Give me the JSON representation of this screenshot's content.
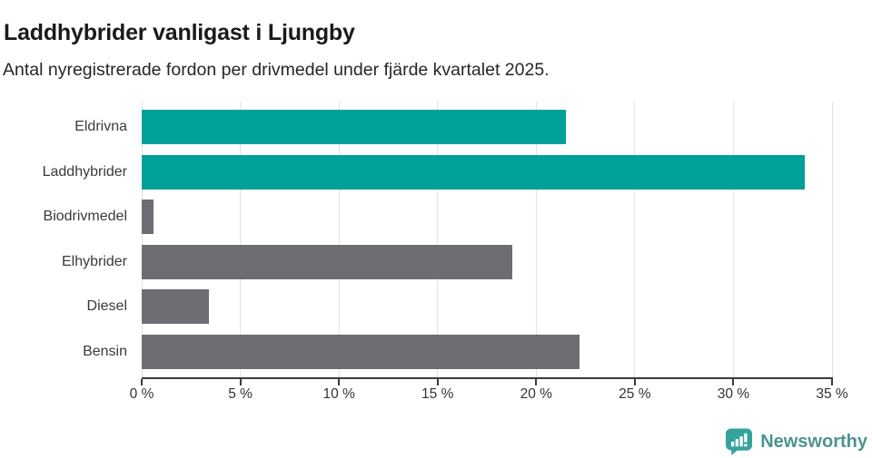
{
  "header": {
    "title": "Laddhybrider vanligast i Ljungby",
    "subtitle": "Antal nyregistrerade fordon per drivmedel under fjärde kvartalet 2025."
  },
  "chart_data": {
    "type": "bar",
    "orientation": "horizontal",
    "title": "Laddhybrider vanligast i Ljungby",
    "subtitle": "Antal nyregistrerade fordon per drivmedel under fjärde kvartalet 2025.",
    "categories": [
      "Eldrivna",
      "Laddhybrider",
      "Biodrivmedel",
      "Elhybrider",
      "Diesel",
      "Bensin"
    ],
    "values": [
      21.5,
      33.6,
      0.6,
      18.8,
      3.4,
      22.2
    ],
    "unit": "%",
    "xlim": [
      0,
      35
    ],
    "xticks": [
      0,
      5,
      10,
      15,
      20,
      25,
      30,
      35
    ],
    "xtick_labels": [
      "0 %",
      "5 %",
      "10 %",
      "15 %",
      "20 %",
      "25 %",
      "30 %",
      "35 %"
    ],
    "bar_colors": [
      "#00A19A",
      "#00A19A",
      "#6D6D73",
      "#6D6D73",
      "#6D6D73",
      "#6D6D73"
    ],
    "grid": "vertical-gridlines-on",
    "legend": "none"
  },
  "colors": {
    "teal": "#00A19A",
    "gray": "#6D6D73",
    "gridline": "#E2E2E2",
    "axis": "#3B3B40",
    "logo_bubble": "#36A39C",
    "logo_text": "#4B948F"
  },
  "branding": {
    "logo_text": "Newsworthy",
    "logo_icon": "newsworthy-speech-bubble-bar-chart-icon"
  }
}
